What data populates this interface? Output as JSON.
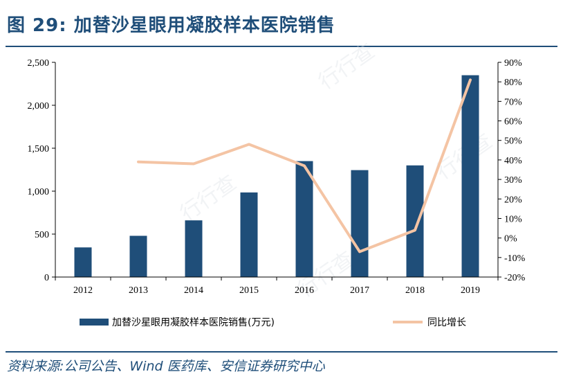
{
  "title": {
    "prefix": "图 29:",
    "text": "加替沙星眼用凝胶样本医院销售"
  },
  "source": "资料来源:公司公告、Wind 医药库、安信证券研究中心",
  "chart_data": {
    "type": "bar",
    "categories": [
      "2012",
      "2013",
      "2014",
      "2015",
      "2016",
      "2017",
      "2018",
      "2019"
    ],
    "series": [
      {
        "name": "加替沙星眼用凝胶样本医院销售(万元)",
        "type": "bar",
        "axis": "left",
        "color": "#1f4e79",
        "values": [
          345,
          480,
          660,
          985,
          1350,
          1245,
          1300,
          2350
        ]
      },
      {
        "name": "同比增长",
        "type": "line",
        "axis": "right",
        "color": "#f4c4a4",
        "values": [
          null,
          39,
          38,
          48,
          37,
          -7,
          4,
          81
        ]
      }
    ],
    "y_left": {
      "lim": [
        0,
        2500
      ],
      "ticks": [
        0,
        500,
        1000,
        1500,
        2000,
        2500
      ],
      "tick_labels": [
        "0",
        "500",
        "1,000",
        "1,500",
        "2,000",
        "2,500"
      ]
    },
    "y_right": {
      "lim": [
        -20,
        90
      ],
      "ticks": [
        -20,
        -10,
        0,
        10,
        20,
        30,
        40,
        50,
        60,
        70,
        80,
        90
      ],
      "tick_labels": [
        "-20%",
        "-10%",
        "0%",
        "10%",
        "20%",
        "30%",
        "40%",
        "50%",
        "60%",
        "70%",
        "80%",
        "90%"
      ]
    },
    "grid": false,
    "legend": "bottom"
  }
}
